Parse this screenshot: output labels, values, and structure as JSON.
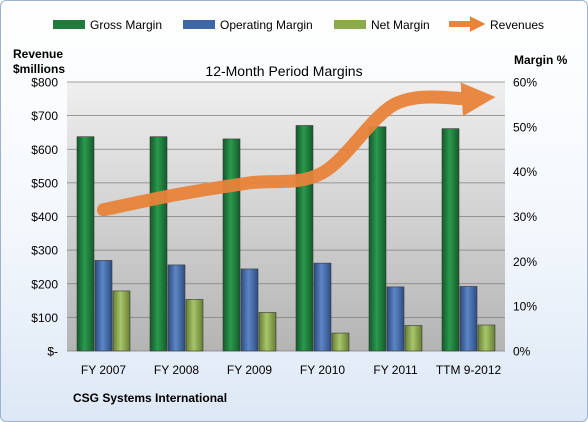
{
  "chart_data": {
    "type": "bar",
    "title": "12-Month Period Margins",
    "company": "CSG Systems International",
    "categories": [
      "FY 2007",
      "FY 2008",
      "FY 2009",
      "FY 2010",
      "FY 2011",
      "TTM 9-2012"
    ],
    "left_axis": {
      "label_line1": "Revenue",
      "label_line2": "$millions",
      "range": [
        0,
        800
      ],
      "ticks": [
        {
          "value": 0,
          "label": "$-"
        },
        {
          "value": 100,
          "label": "$100"
        },
        {
          "value": 200,
          "label": "$200"
        },
        {
          "value": 300,
          "label": "$300"
        },
        {
          "value": 400,
          "label": "$400"
        },
        {
          "value": 500,
          "label": "$500"
        },
        {
          "value": 600,
          "label": "$600"
        },
        {
          "value": 700,
          "label": "$700"
        },
        {
          "value": 800,
          "label": "$800"
        }
      ]
    },
    "right_axis": {
      "label": "Margin %",
      "range": [
        0,
        60
      ],
      "ticks": [
        {
          "value": 0,
          "label": "0%"
        },
        {
          "value": 10,
          "label": "10%"
        },
        {
          "value": 20,
          "label": "20%"
        },
        {
          "value": 30,
          "label": "30%"
        },
        {
          "value": 40,
          "label": "40%"
        },
        {
          "value": 50,
          "label": "50%"
        },
        {
          "value": 60,
          "label": "60%"
        }
      ]
    },
    "grid": true,
    "legend_position": "top",
    "series": [
      {
        "name": "Gross Margin",
        "kind": "bar",
        "axis": "right",
        "color": "#1f7a3c",
        "values": [
          47.8,
          47.8,
          47.3,
          50.3,
          50.0,
          49.6
        ]
      },
      {
        "name": "Operating Margin",
        "kind": "bar",
        "axis": "right",
        "color": "#3f67a6",
        "values": [
          20.2,
          19.2,
          18.3,
          19.6,
          14.3,
          14.4
        ]
      },
      {
        "name": "Net Margin",
        "kind": "bar",
        "axis": "right",
        "color": "#8aaa4b",
        "values": [
          13.4,
          11.5,
          8.6,
          4.0,
          5.7,
          5.8
        ]
      },
      {
        "name": "Revenues",
        "kind": "line",
        "axis": "left",
        "color": "#e8833a",
        "values": [
          420,
          465,
          500,
          530,
          735,
          750
        ]
      }
    ]
  }
}
